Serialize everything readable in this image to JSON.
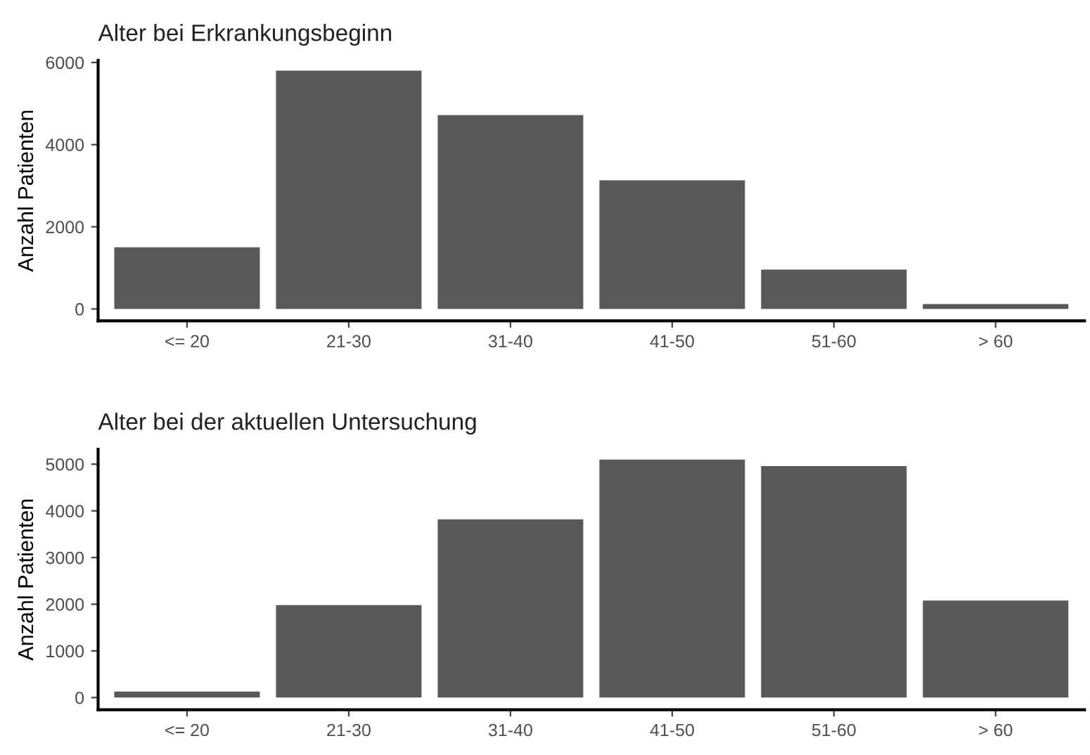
{
  "chart_data": [
    {
      "type": "bar",
      "title": "Alter bei Erkrankungsbeginn",
      "ylabel": "Anzahl Patienten",
      "categories": [
        "<= 20",
        "21-30",
        "31-40",
        "41-50",
        "51-60",
        "> 60"
      ],
      "values": [
        1500,
        5800,
        4720,
        3130,
        960,
        120
      ],
      "color": "#595959",
      "ylim": [
        -290,
        6050
      ],
      "yticks": [
        0,
        2000,
        4000,
        6000
      ],
      "grid": false
    },
    {
      "type": "bar",
      "title": "Alter bei der aktuellen Untersuchung",
      "ylabel": "Anzahl Patienten",
      "categories": [
        "<= 20",
        "21-30",
        "31-40",
        "41-50",
        "51-60",
        "> 60"
      ],
      "values": [
        130,
        1980,
        3820,
        5100,
        4960,
        2080
      ],
      "color": "#595959",
      "ylim": [
        -260,
        5320
      ],
      "yticks": [
        0,
        1000,
        2000,
        3000,
        4000,
        5000
      ],
      "grid": false
    }
  ]
}
